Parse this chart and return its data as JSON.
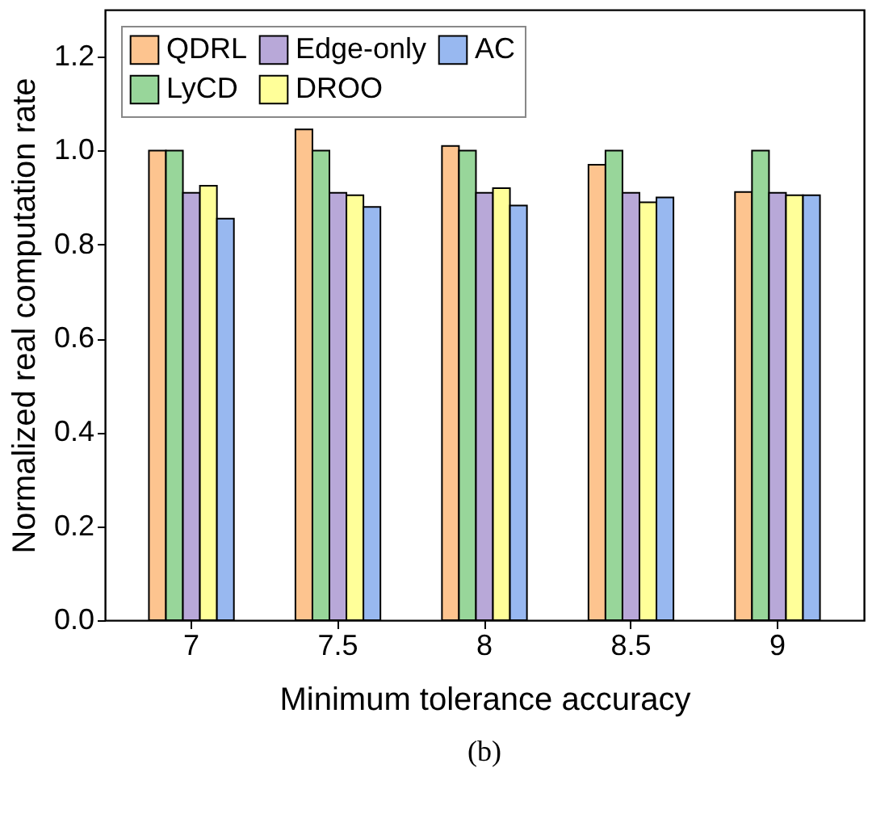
{
  "chart_data": {
    "type": "bar",
    "xlabel": "Minimum tolerance accuracy",
    "ylabel": "Normalized real computation rate",
    "categories": [
      "7",
      "7.5",
      "8",
      "8.5",
      "9"
    ],
    "series": [
      {
        "name": "QDRL",
        "color": "#fdc48f",
        "values": [
          1.0,
          1.045,
          1.01,
          0.97,
          0.912
        ]
      },
      {
        "name": "LyCD",
        "color": "#98d69a",
        "values": [
          1.0,
          1.0,
          1.0,
          1.0,
          1.0
        ]
      },
      {
        "name": "Edge-only",
        "color": "#b8a8d8",
        "values": [
          0.91,
          0.91,
          0.91,
          0.91,
          0.91
        ]
      },
      {
        "name": "DROO",
        "color": "#ffff99",
        "values": [
          0.925,
          0.905,
          0.92,
          0.89,
          0.905
        ]
      },
      {
        "name": "AC",
        "color": "#98b8f0",
        "values": [
          0.855,
          0.88,
          0.883,
          0.9,
          0.905
        ]
      }
    ],
    "ylim": [
      0,
      1.3
    ],
    "yticks": [
      {
        "value": 0,
        "label": "0.0"
      },
      0.2,
      0.4,
      0.6,
      0.8,
      {
        "value": 1,
        "label": "1.0"
      },
      1.2
    ],
    "grid": false,
    "legend": "top left",
    "annotations": [
      "(b)"
    ]
  }
}
